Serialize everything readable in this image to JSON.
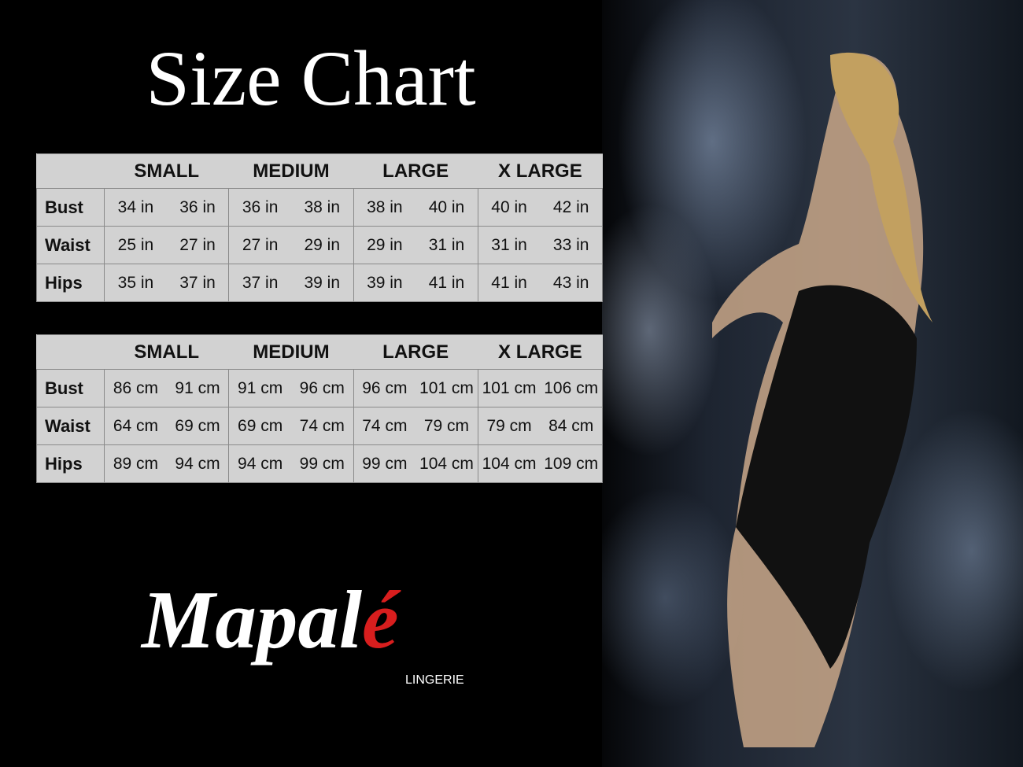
{
  "title": "Size Chart",
  "sizes": [
    "SMALL",
    "MEDIUM",
    "LARGE",
    "X LARGE"
  ],
  "tables": [
    {
      "rows": [
        {
          "label": "Bust",
          "values": [
            "34 in",
            "36 in",
            "36 in",
            "38 in",
            "38 in",
            "40 in",
            "40 in",
            "42 in"
          ]
        },
        {
          "label": "Waist",
          "values": [
            "25 in",
            "27 in",
            "27 in",
            "29 in",
            "29 in",
            "31 in",
            "31 in",
            "33 in"
          ]
        },
        {
          "label": "Hips",
          "values": [
            "35 in",
            "37 in",
            "37 in",
            "39 in",
            "39 in",
            "41 in",
            "41 in",
            "43 in"
          ]
        }
      ]
    },
    {
      "rows": [
        {
          "label": "Bust",
          "values": [
            "86 cm",
            "91 cm",
            "91 cm",
            "96 cm",
            "96 cm",
            "101 cm",
            "101 cm",
            "106 cm"
          ]
        },
        {
          "label": "Waist",
          "values": [
            "64 cm",
            "69 cm",
            "69 cm",
            "74 cm",
            "74 cm",
            "79  cm",
            "79 cm",
            "84 cm"
          ]
        },
        {
          "label": "Hips",
          "values": [
            "89 cm",
            "94 cm",
            "94 cm",
            "99 cm",
            "99 cm",
            "104 cm",
            "104 cm",
            "109 cm"
          ]
        }
      ]
    }
  ],
  "logo": {
    "name_main": "Mapal",
    "name_accent": "é",
    "sub": "LINGERIE",
    "accent_color": "#d81e1e"
  }
}
